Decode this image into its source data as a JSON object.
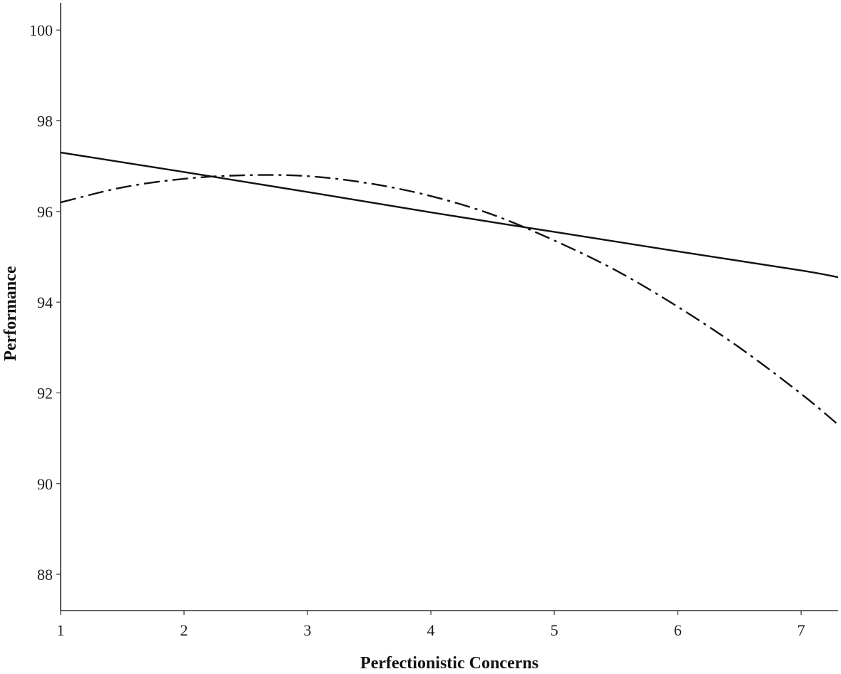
{
  "chart_data": {
    "type": "line",
    "title": "",
    "xlabel": "Perfectionistic Concerns",
    "ylabel": "Performance",
    "xlim": [
      1,
      7.3
    ],
    "ylim": [
      87.2,
      100.6
    ],
    "x_ticks": [
      "1",
      "2",
      "3",
      "4",
      "5",
      "6",
      "7"
    ],
    "y_ticks": [
      "88",
      "90",
      "92",
      "94",
      "96",
      "98",
      "100"
    ],
    "grid": false,
    "legend": "none",
    "series": [
      {
        "style": "solid",
        "color": "#111111",
        "x": [
          1,
          2,
          3,
          4,
          5,
          6,
          7,
          7.3
        ],
        "y": [
          97.3,
          96.87,
          96.43,
          95.98,
          95.55,
          95.12,
          94.7,
          94.55
        ]
      },
      {
        "style": "dash-dot",
        "color": "#111111",
        "x": [
          1,
          1.5,
          2,
          2.5,
          3,
          3.5,
          4,
          4.5,
          5,
          5.5,
          6,
          6.5,
          7,
          7.3
        ],
        "y": [
          96.2,
          96.53,
          96.72,
          96.8,
          96.78,
          96.62,
          96.34,
          95.93,
          95.36,
          94.7,
          93.9,
          93.0,
          91.98,
          91.3
        ]
      }
    ]
  }
}
